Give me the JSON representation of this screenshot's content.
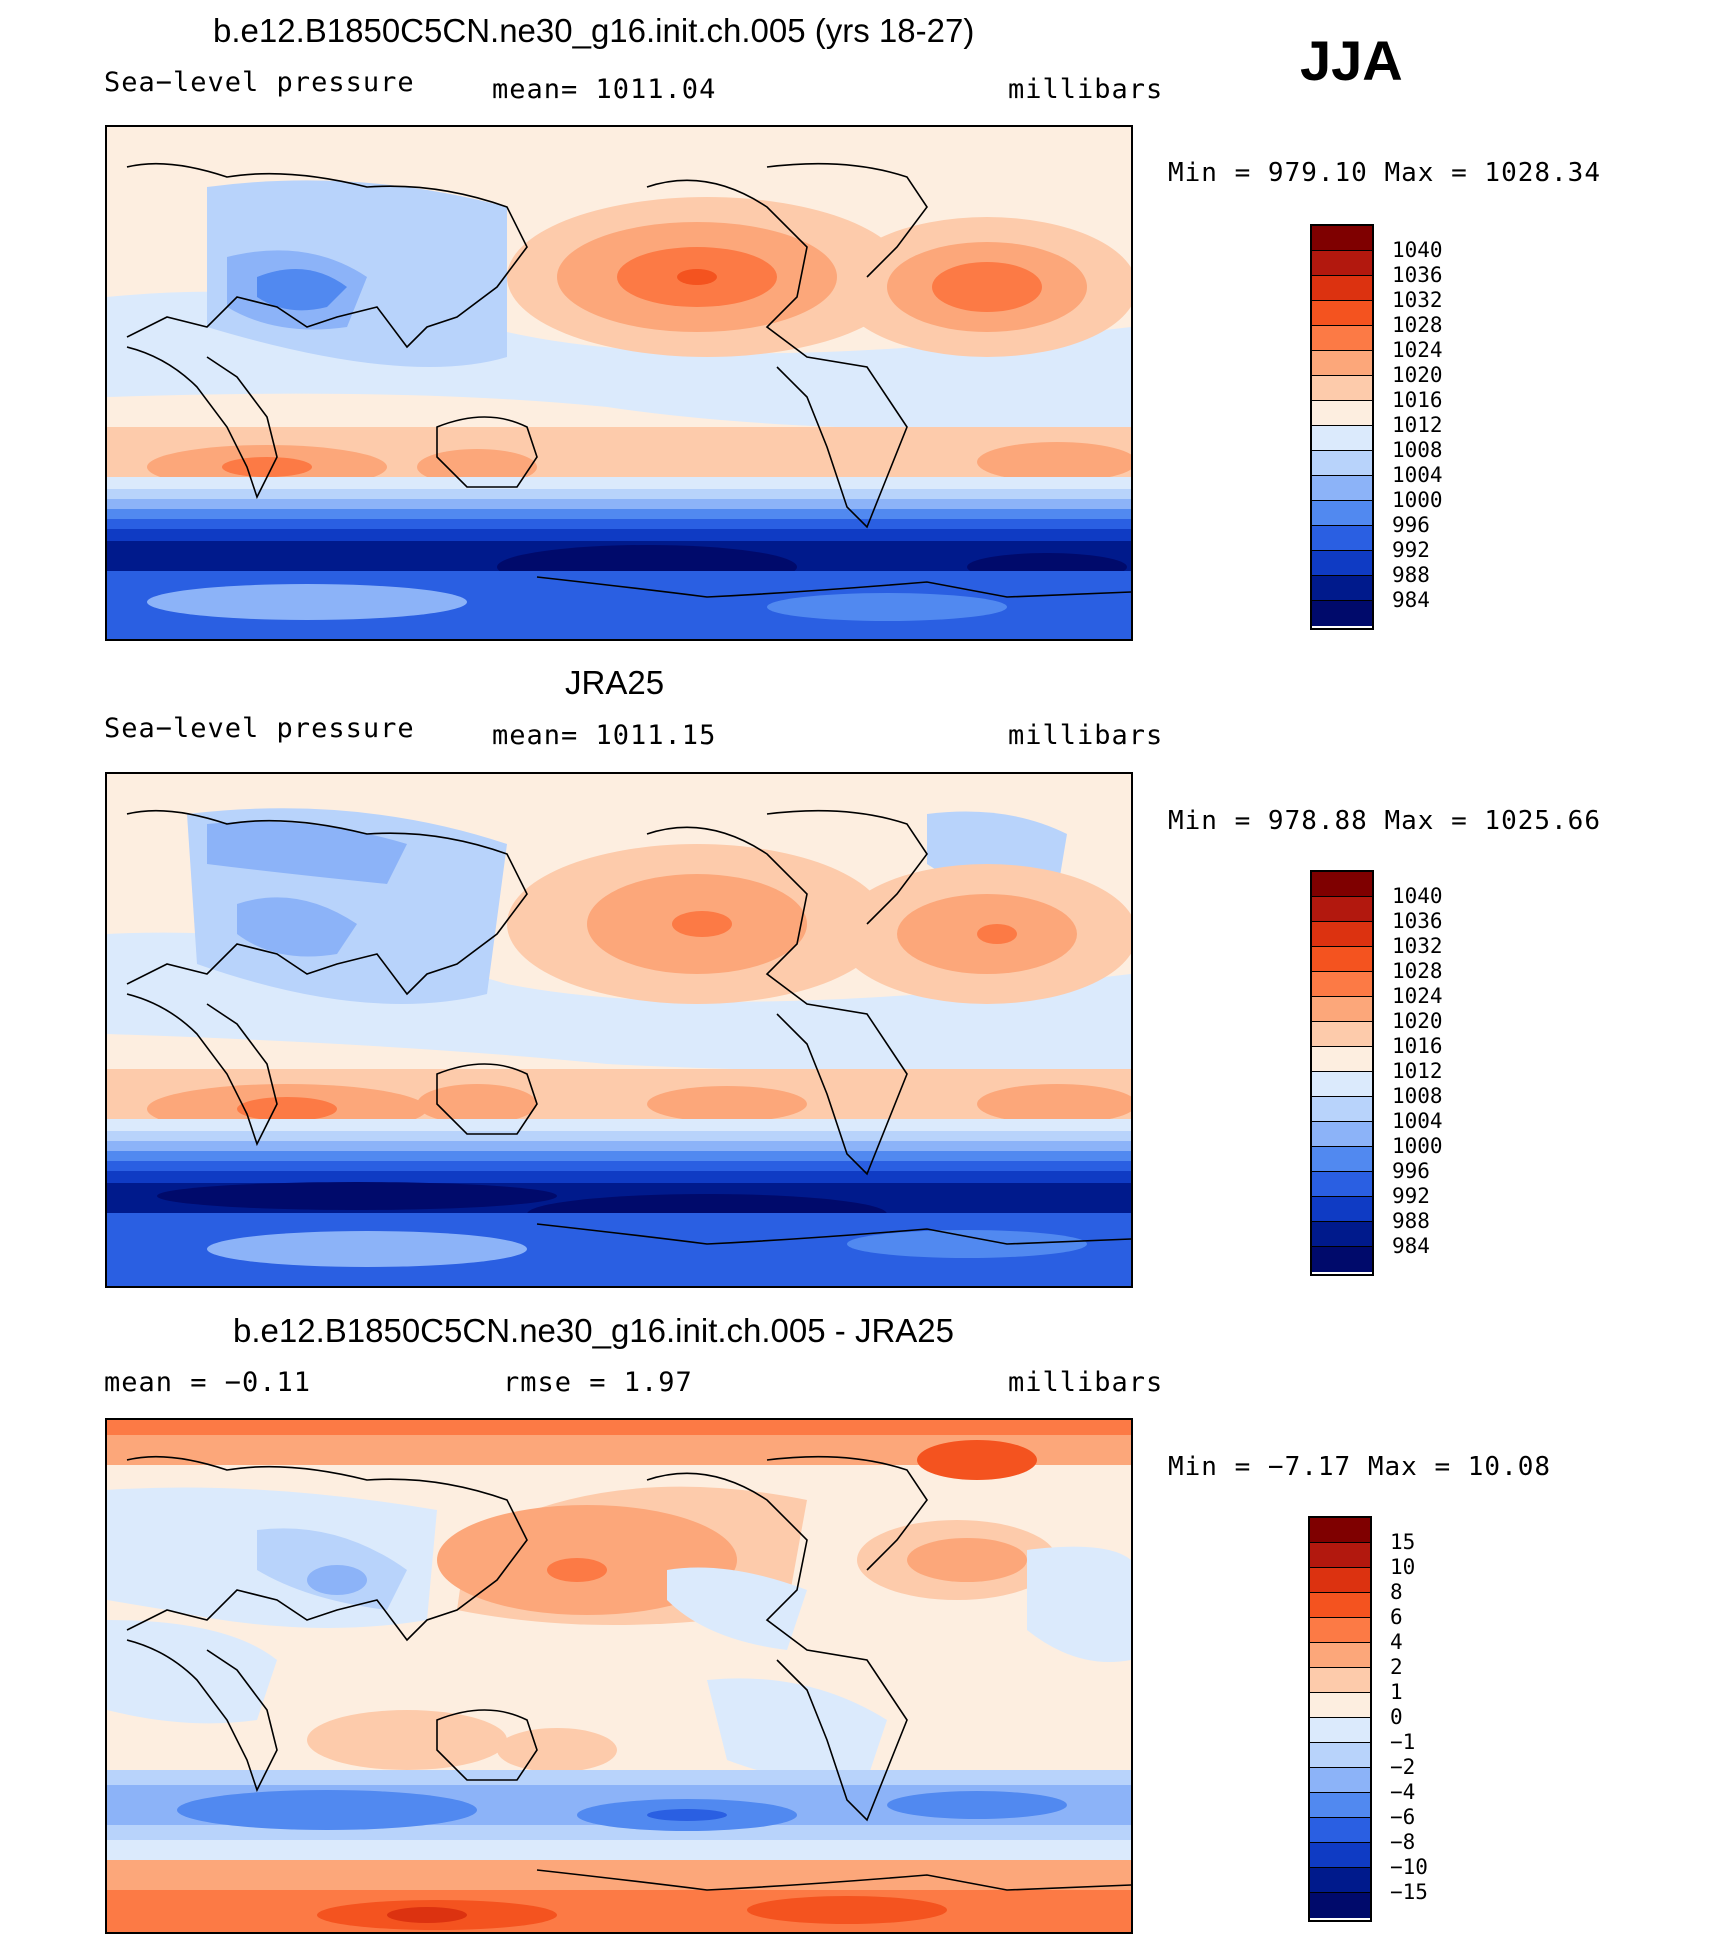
{
  "season": "JJA",
  "panels": [
    {
      "id": "model",
      "title": "b.e12.B1850C5CN.ne30_g16.init.ch.005 (yrs 18-27)",
      "left_label": "Sea−level pressure",
      "center_label": "mean=  1011.04",
      "right_label": "millibars",
      "minmax": "Min  =  979.10  Max  =  1028.34",
      "colorbar_labels": [
        "1040",
        "1036",
        "1032",
        "1028",
        "1024",
        "1020",
        "1016",
        "1012",
        "1008",
        "1004",
        "1000",
        "996",
        "992",
        "988",
        "984"
      ]
    },
    {
      "id": "obs",
      "title": "JRA25",
      "left_label": "Sea−level pressure",
      "center_label": "mean=  1011.15",
      "right_label": "millibars",
      "minmax": "Min  =  978.88  Max  =  1025.66",
      "colorbar_labels": [
        "1040",
        "1036",
        "1032",
        "1028",
        "1024",
        "1020",
        "1016",
        "1012",
        "1008",
        "1004",
        "1000",
        "996",
        "992",
        "988",
        "984"
      ]
    },
    {
      "id": "diff",
      "title": "b.e12.B1850C5CN.ne30_g16.init.ch.005 - JRA25",
      "left_label": "mean  =    −0.11",
      "center_label": "rmse  =     1.97",
      "right_label": "millibars",
      "minmax": "Min  =   −7.17  Max  =   10.08",
      "colorbar_labels": [
        "15",
        "10",
        "8",
        "6",
        "4",
        "2",
        "1",
        "0",
        "−1",
        "−2",
        "−4",
        "−6",
        "−8",
        "−10",
        "−15"
      ]
    }
  ],
  "colors": {
    "scale": [
      "#7f0000",
      "#b2180e",
      "#dc3210",
      "#f4531f",
      "#fc7a45",
      "#fca77a",
      "#fdcbab",
      "#fdeee0",
      "#dbeafc",
      "#b8d3fb",
      "#8cb3f8",
      "#5189f0",
      "#2a5fe2",
      "#0f3bc4",
      "#001a8c",
      "#000a6b"
    ],
    "land_outline": "#000000"
  }
}
